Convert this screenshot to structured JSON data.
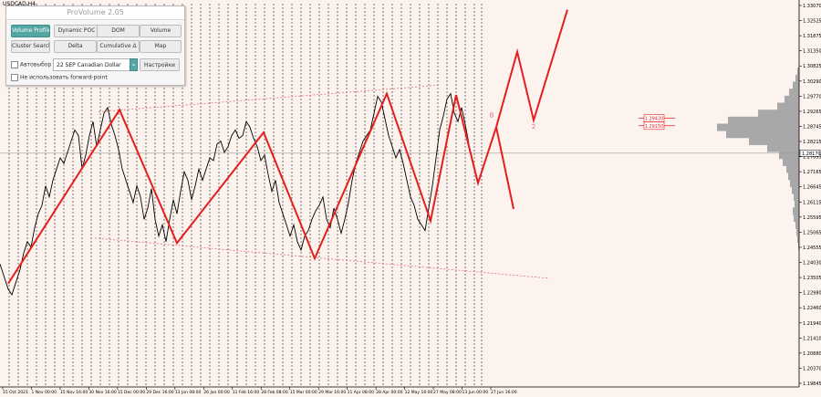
{
  "symbol_label": "USDCAD,H4",
  "panel": {
    "title": "ProVolume 2.05",
    "buttons": [
      {
        "label": "Volume Profile",
        "active": true
      },
      {
        "label": "Dynamic POC",
        "active": false
      },
      {
        "label": "DOM",
        "active": false
      },
      {
        "label": "Volume",
        "active": false
      },
      {
        "label": "Cluster Search",
        "active": false
      },
      {
        "label": "Delta",
        "active": false
      },
      {
        "label": "Cumulative Δ",
        "active": false
      },
      {
        "label": "Map",
        "active": false
      }
    ],
    "autoselect_label": "Автовыбор",
    "instrument": "22 SEP Canadian Dollar",
    "settings_label": "Настройки",
    "forward_point_label": "Не использовать forward-point"
  },
  "chart_data": {
    "type": "line",
    "symbol": "USDCAD",
    "timeframe": "H4",
    "ylim": [
      1.198,
      1.3352
    ],
    "y_ticks": [
      "1.33070",
      "1.32525",
      "1.31875",
      "1.31350",
      "1.30825",
      "1.30290",
      "1.29770",
      "1.29265",
      "1.28745",
      "1.28215",
      "1.27695",
      "1.27165",
      "1.26645",
      "1.26115",
      "1.25595",
      "1.25065",
      "1.24555",
      "1.24030",
      "1.23505",
      "1.22980",
      "1.22460",
      "1.21940",
      "1.21410",
      "1.20880",
      "1.20370",
      "1.19845"
    ],
    "x_ticks": [
      "15 Oct 2021",
      "1 Nov 00:00",
      "15 Nov 16:00",
      "30 Nov 16:00",
      "15 Dec 00:00",
      "29 Dec 16:00",
      "13 Jan 08:00",
      "26 Jan 00:00",
      "11 Feb 16:00",
      "28 Feb 08:00",
      "15 Mar 00:00",
      "29 Mar 16:00",
      "11 Apr 08:00",
      "28 Apr 00:00",
      "12 May 16:00",
      "27 May 08:00",
      "13 Jun 00:00",
      "27 Jun 16:00"
    ],
    "current_price": "1.28170",
    "price_marks": [
      "1.29420",
      "1.29150"
    ],
    "price_series_x": [
      0,
      4,
      9,
      13,
      16,
      22,
      26,
      30,
      34,
      38,
      42,
      46,
      50,
      54,
      58,
      62,
      66,
      70,
      74,
      78,
      82,
      86,
      90,
      94,
      98,
      102,
      106,
      110,
      114,
      118,
      122,
      126,
      130,
      134,
      138,
      142,
      146,
      150,
      154,
      158,
      162,
      166,
      170,
      174,
      178,
      182,
      186,
      190,
      194,
      198,
      202,
      206,
      210,
      214,
      218,
      222,
      226,
      230,
      234,
      238,
      242,
      246,
      250,
      254,
      258,
      262,
      266,
      270,
      274,
      278,
      282,
      286,
      290,
      294,
      298,
      302,
      306,
      310,
      314,
      318,
      322,
      326,
      330,
      334,
      338,
      342,
      346,
      350,
      354,
      358,
      362,
      366,
      370,
      374,
      378,
      382,
      386,
      390,
      394,
      398,
      402,
      406,
      410,
      414,
      418,
      422,
      426,
      430,
      434,
      438,
      442,
      446,
      450,
      454,
      458,
      462,
      466,
      470,
      474,
      478,
      482,
      486,
      490,
      494,
      498,
      502,
      506,
      510,
      514
    ],
    "price_series_y": [
      1.242,
      1.238,
      1.233,
      1.231,
      1.234,
      1.24,
      1.246,
      1.25,
      1.248,
      1.255,
      1.26,
      1.263,
      1.27,
      1.266,
      1.272,
      1.276,
      1.28,
      1.278,
      1.282,
      1.286,
      1.29,
      1.288,
      1.276,
      1.281,
      1.288,
      1.293,
      1.284,
      1.29,
      1.296,
      1.298,
      1.292,
      1.288,
      1.283,
      1.276,
      1.272,
      1.268,
      1.264,
      1.27,
      1.266,
      1.258,
      1.262,
      1.269,
      1.258,
      1.252,
      1.256,
      1.25,
      1.258,
      1.265,
      1.26,
      1.268,
      1.275,
      1.272,
      1.265,
      1.27,
      1.276,
      1.272,
      1.276,
      1.28,
      1.279,
      1.285,
      1.286,
      1.282,
      1.284,
      1.288,
      1.29,
      1.287,
      1.288,
      1.293,
      1.291,
      1.287,
      1.284,
      1.279,
      1.281,
      1.274,
      1.268,
      1.272,
      1.264,
      1.26,
      1.256,
      1.252,
      1.256,
      1.25,
      1.247,
      1.252,
      1.254,
      1.258,
      1.261,
      1.263,
      1.266,
      1.258,
      1.255,
      1.262,
      1.258,
      1.253,
      1.258,
      1.264,
      1.272,
      1.278,
      1.282,
      1.286,
      1.288,
      1.29,
      1.296,
      1.302,
      1.3,
      1.294,
      1.288,
      1.284,
      1.28,
      1.283,
      1.278,
      1.272,
      1.266,
      1.263,
      1.258,
      1.256,
      1.254,
      1.262,
      1.27,
      1.28,
      1.29,
      1.295,
      1.301,
      1.303,
      1.296,
      1.293,
      1.298,
      1.292,
      1.285
    ],
    "zigzag_x": [
      9,
      131,
      194,
      289,
      345,
      424,
      472,
      500,
      524,
      544,
      567,
      585,
      622
    ],
    "zigzag_y": [
      1.235,
      1.2972,
      1.2495,
      1.2891,
      1.244,
      1.303,
      1.2575,
      1.3025,
      1.271,
      1.291,
      1.318,
      1.2935,
      1.333
    ],
    "bearish_alt_x": [
      544,
      563
    ],
    "bearish_alt_y": [
      1.291,
      1.2617
    ],
    "channel_upper_x": [
      108,
      480
    ],
    "channel_upper_y": [
      1.2965,
      1.306
    ],
    "channel_lower_x": [
      104,
      602
    ],
    "channel_lower_y": [
      1.2513,
      1.2369
    ],
    "vlines_x": [
      10,
      20,
      30,
      40,
      50,
      60,
      70,
      80,
      90,
      100,
      110,
      120,
      130,
      140,
      150,
      160,
      170,
      180,
      190,
      200,
      210,
      220,
      230,
      240,
      250,
      260,
      270,
      280,
      290,
      300,
      310,
      320,
      330,
      340,
      350,
      360,
      370,
      380,
      390,
      400,
      410,
      420,
      430,
      440,
      450,
      460,
      470,
      480,
      490,
      500,
      510,
      520,
      528
    ],
    "wave_labels": [
      {
        "text": "B",
        "x": 539,
        "y": 1.2945
      },
      {
        "text": "2",
        "x": 585,
        "y": 1.2905
      }
    ],
    "profile_y": [
      1.311,
      1.3085,
      1.306,
      1.3035,
      1.301,
      1.2985,
      1.296,
      1.2935,
      1.291,
      1.2885,
      1.286,
      1.2835,
      1.281,
      1.2785,
      1.276,
      1.2735,
      1.271,
      1.2685,
      1.266,
      1.2635,
      1.261,
      1.2585,
      1.256,
      1.2535,
      1.251,
      1.2485
    ],
    "profile_volume": [
      2,
      4,
      7,
      11,
      16,
      24,
      45,
      78,
      90,
      80,
      55,
      35,
      22,
      18,
      14,
      12,
      10,
      8,
      6,
      5,
      7,
      6,
      4,
      3,
      2,
      1
    ],
    "colors": {
      "background": "#fdf3ee",
      "price": "#000000",
      "zigzag": "#e41e1e",
      "channel": "#e07070",
      "grid": "#1a1a1a",
      "profile": "#a8a8a8"
    }
  }
}
